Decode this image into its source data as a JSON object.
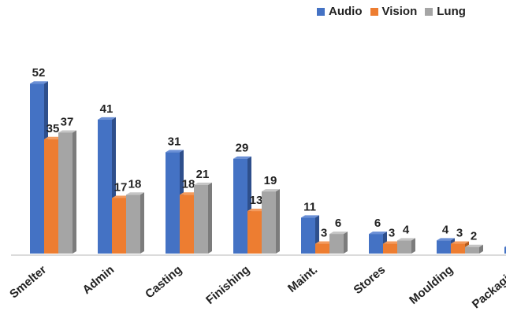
{
  "legend": {
    "audio": "Audio",
    "vision": "Vision",
    "lung": "Lung"
  },
  "colors": {
    "audio": "#4472C4",
    "audio_side": "#2E4F8C",
    "audio_top": "#6A8FD6",
    "vision": "#ED7D31",
    "vision_side": "#B45A1C",
    "vision_top": "#F39B5E",
    "lung": "#A5A5A5",
    "lung_side": "#7C7C7C",
    "lung_top": "#C5C5C5"
  },
  "chart_data": {
    "type": "bar",
    "title": "",
    "xlabel": "",
    "ylabel": "",
    "ylim": [
      0,
      52
    ],
    "grid": false,
    "legend_position": "top-right",
    "categories": [
      "Smelter",
      "Admin",
      "Casting",
      "Finishing",
      "Maint.",
      "Stores",
      "Moulding",
      "Packaging"
    ],
    "series": [
      {
        "name": "Audio",
        "values": [
          52,
          41,
          31,
          29,
          11,
          6,
          4,
          2
        ]
      },
      {
        "name": "Vision",
        "values": [
          35,
          17,
          18,
          13,
          3,
          3,
          3,
          null
        ]
      },
      {
        "name": "Lung",
        "values": [
          37,
          18,
          21,
          19,
          6,
          4,
          2,
          null
        ]
      }
    ]
  }
}
